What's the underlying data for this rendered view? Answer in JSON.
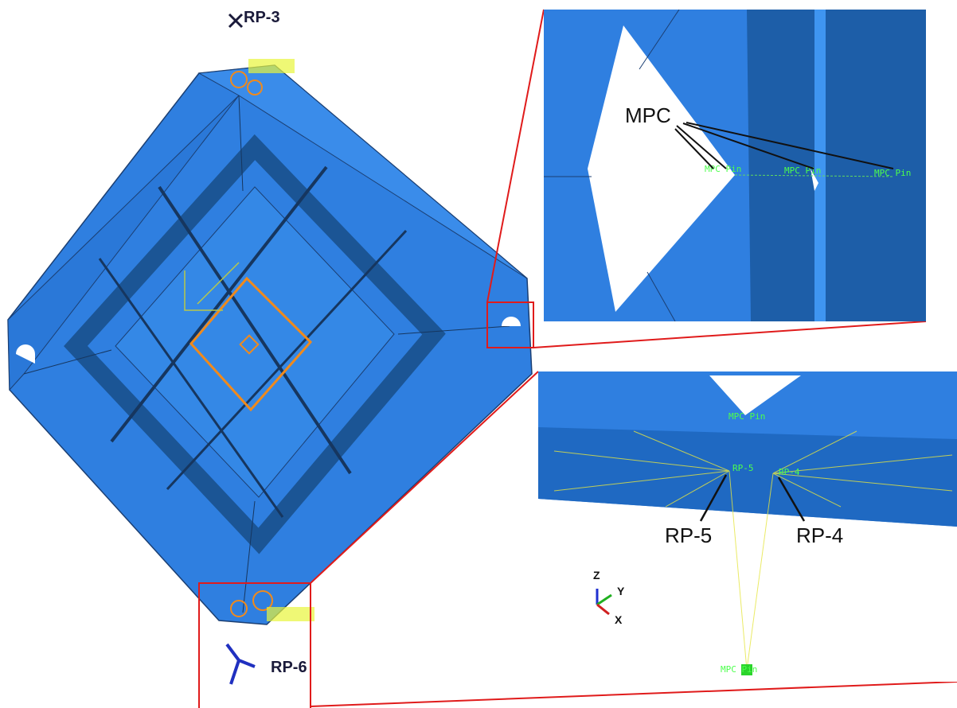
{
  "labels": {
    "rp3": "RP-3",
    "rp6": "RP-6",
    "mpc": "MPC",
    "rp5": "RP-5",
    "rp4": "RP-4"
  },
  "triad": {
    "z": "Z",
    "y": "Y",
    "x": "X"
  },
  "tags": {
    "pin_a": "MPC Pin",
    "pin_b": "MPC Pin",
    "pin_c": "MPC Pin",
    "pin_d": "MPC Pin",
    "pin_e": "MPC Pin",
    "rp5_tag": "RP-5",
    "rp4_tag": "RP-4"
  }
}
